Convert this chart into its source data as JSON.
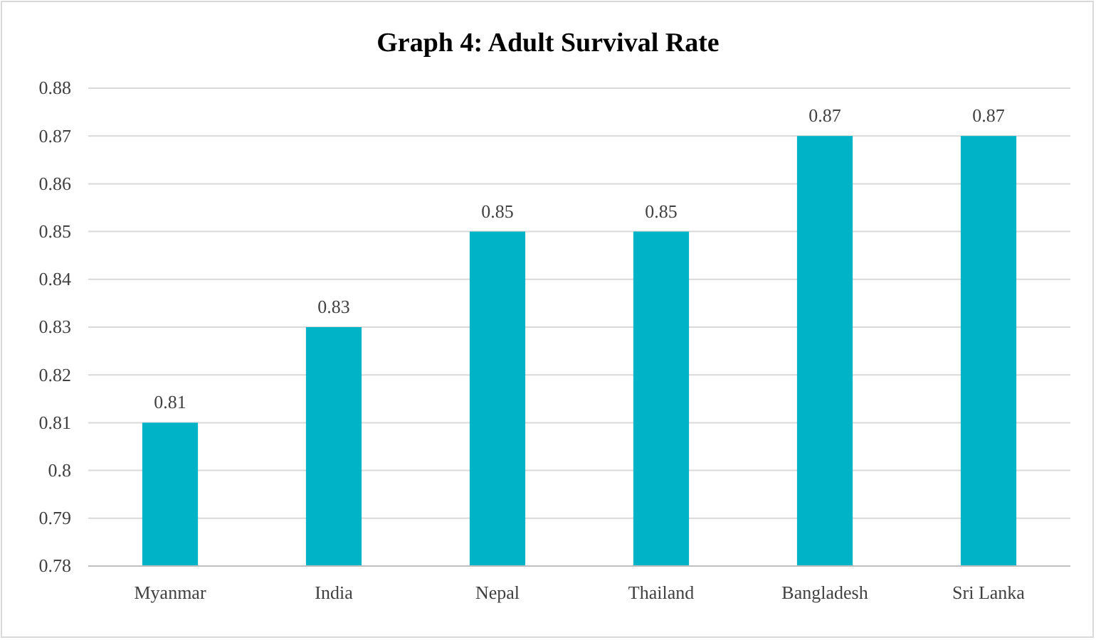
{
  "chart_data": {
    "type": "bar",
    "title": "Graph 4: Adult Survival Rate",
    "categories": [
      "Myanmar",
      "India",
      "Nepal",
      "Thailand",
      "Bangladesh",
      "Sri Lanka"
    ],
    "values": [
      0.81,
      0.83,
      0.85,
      0.85,
      0.87,
      0.87
    ],
    "color": "#00b3c6",
    "ylim": [
      0.78,
      0.88
    ],
    "yticks": [
      0.78,
      0.79,
      0.8,
      0.81,
      0.82,
      0.83,
      0.84,
      0.85,
      0.86,
      0.87,
      0.88
    ],
    "grid": "y",
    "data_labels": true
  }
}
